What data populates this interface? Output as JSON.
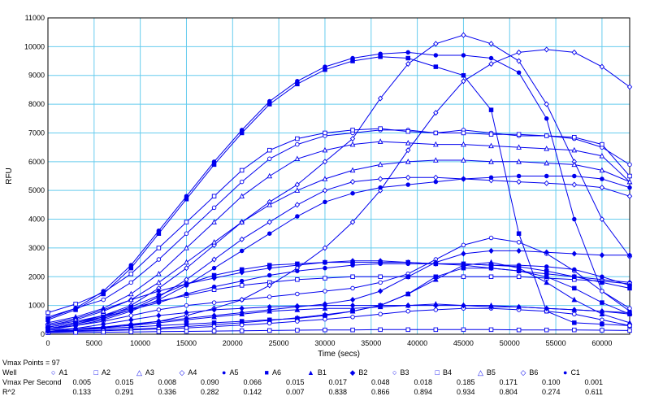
{
  "chart_data": {
    "type": "line",
    "title": "",
    "xlabel": "Time (secs)",
    "ylabel": "RFU",
    "xlim": [
      0,
      63000
    ],
    "ylim": [
      0,
      11000
    ],
    "xticks": [
      0,
      5000,
      10000,
      15000,
      20000,
      25000,
      30000,
      35000,
      40000,
      45000,
      50000,
      55000,
      60000
    ],
    "yticks": [
      0,
      1000,
      2000,
      3000,
      4000,
      5000,
      6000,
      7000,
      8000,
      9000,
      10000,
      11000
    ],
    "grid": true,
    "line_color": "#0000ee",
    "grid_color": "#66ccee",
    "x": [
      0,
      3000,
      6000,
      9000,
      12000,
      15000,
      18000,
      21000,
      24000,
      27000,
      30000,
      33000,
      36000,
      39000,
      42000,
      45000,
      48000,
      51000,
      54000,
      57000,
      60000,
      63000
    ],
    "series": [
      {
        "marker": "circle-open",
        "values": [
          600,
          900,
          1200,
          1800,
          2600,
          3500,
          4400,
          5300,
          6100,
          6600,
          6900,
          7000,
          7100,
          7100,
          7000,
          7100,
          7000,
          6900,
          6900,
          6800,
          6500,
          5900
        ]
      },
      {
        "marker": "square-open",
        "values": [
          750,
          1050,
          1450,
          2100,
          3000,
          3900,
          4800,
          5700,
          6400,
          6800,
          7000,
          7100,
          7150,
          7050,
          7000,
          7000,
          6950,
          6950,
          6900,
          6850,
          6600,
          5500
        ]
      },
      {
        "marker": "triangle-open",
        "values": [
          400,
          600,
          900,
          1400,
          2100,
          3000,
          3900,
          4800,
          5500,
          6100,
          6400,
          6600,
          6700,
          6650,
          6600,
          6600,
          6550,
          6500,
          6450,
          6400,
          6200,
          5300
        ]
      },
      {
        "marker": "diamond-open",
        "values": [
          250,
          400,
          650,
          1000,
          1600,
          2300,
          3100,
          3900,
          4600,
          5200,
          6000,
          6800,
          8200,
          9400,
          10100,
          10400,
          10100,
          9500,
          8000,
          6000,
          4000,
          2700
        ]
      },
      {
        "marker": "circle-filled",
        "values": [
          550,
          900,
          1500,
          2400,
          3600,
          4800,
          6000,
          7100,
          8100,
          8800,
          9300,
          9600,
          9750,
          9800,
          9700,
          9700,
          9600,
          9100,
          7500,
          4000,
          1500,
          800
        ]
      },
      {
        "marker": "square-filled",
        "values": [
          500,
          850,
          1400,
          2300,
          3500,
          4700,
          5900,
          7000,
          8000,
          8700,
          9200,
          9500,
          9650,
          9600,
          9300,
          9000,
          7800,
          3500,
          800,
          400,
          350,
          300
        ]
      },
      {
        "marker": "triangle-filled",
        "values": [
          150,
          200,
          250,
          300,
          400,
          500,
          600,
          700,
          800,
          850,
          900,
          900,
          950,
          1000,
          1050,
          1000,
          1000,
          950,
          900,
          850,
          800,
          750
        ]
      },
      {
        "marker": "diamond-filled",
        "values": [
          350,
          550,
          850,
          1200,
          1500,
          1750,
          1950,
          2150,
          2300,
          2400,
          2500,
          2550,
          2550,
          2500,
          2450,
          2400,
          2300,
          2200,
          2100,
          2000,
          1900,
          1800
        ]
      },
      {
        "marker": "circle-open",
        "values": [
          200,
          300,
          450,
          650,
          850,
          1000,
          1100,
          1200,
          1300,
          1400,
          1500,
          1600,
          1800,
          2100,
          2600,
          3100,
          3350,
          3200,
          2800,
          2200,
          1500,
          900
        ]
      },
      {
        "marker": "square-open",
        "values": [
          300,
          450,
          650,
          900,
          1150,
          1350,
          1550,
          1700,
          1800,
          1900,
          1950,
          2000,
          2000,
          2000,
          2000,
          2000,
          2000,
          2000,
          1950,
          1900,
          1850,
          1750
        ]
      },
      {
        "marker": "diamond-open",
        "values": [
          100,
          150,
          220,
          320,
          450,
          650,
          900,
          1200,
          1700,
          2300,
          3000,
          3900,
          5000,
          6400,
          7700,
          8800,
          9400,
          9800,
          9900,
          9800,
          9300,
          8600
        ]
      },
      {
        "marker": "triangle-open",
        "values": [
          300,
          500,
          800,
          1200,
          1800,
          2500,
          3200,
          3900,
          4500,
          5000,
          5400,
          5700,
          5900,
          6000,
          6050,
          6050,
          6000,
          6000,
          5950,
          5900,
          5700,
          5300
        ]
      },
      {
        "marker": "diamond-open",
        "values": [
          200,
          350,
          550,
          850,
          1300,
          1900,
          2600,
          3300,
          3900,
          4500,
          5000,
          5300,
          5400,
          5450,
          5450,
          5400,
          5350,
          5300,
          5250,
          5200,
          5100,
          4800
        ]
      },
      {
        "marker": "circle-filled",
        "values": [
          150,
          300,
          500,
          800,
          1200,
          1700,
          2300,
          2900,
          3500,
          4100,
          4600,
          4900,
          5100,
          5200,
          5300,
          5400,
          5450,
          5500,
          5500,
          5500,
          5400,
          5100
        ]
      },
      {
        "marker": "square-filled",
        "values": [
          200,
          350,
          600,
          950,
          1350,
          1750,
          2050,
          2250,
          2400,
          2450,
          2500,
          2500,
          2500,
          2500,
          2450,
          2450,
          2400,
          2350,
          2200,
          2000,
          1800,
          1600
        ]
      },
      {
        "marker": "circle-filled",
        "values": [
          250,
          400,
          600,
          850,
          1100,
          1400,
          1650,
          1850,
          2050,
          2200,
          2300,
          2400,
          2450,
          2450,
          2450,
          2450,
          2400,
          2400,
          2350,
          2250,
          2000,
          1700
        ]
      },
      {
        "marker": "diamond-filled",
        "values": [
          100,
          150,
          250,
          350,
          450,
          550,
          650,
          750,
          850,
          950,
          1050,
          1200,
          1500,
          2000,
          2500,
          2800,
          2900,
          2900,
          2850,
          2800,
          2750,
          2750
        ]
      },
      {
        "marker": "square-filled",
        "values": [
          100,
          150,
          200,
          250,
          300,
          350,
          400,
          450,
          500,
          550,
          650,
          800,
          1000,
          1400,
          2000,
          2300,
          2300,
          2200,
          2000,
          1600,
          1100,
          700
        ]
      },
      {
        "marker": "triangle-filled",
        "values": [
          100,
          120,
          150,
          180,
          220,
          270,
          330,
          400,
          480,
          570,
          680,
          800,
          1000,
          1400,
          1900,
          2400,
          2500,
          2300,
          1800,
          1200,
          700,
          400
        ]
      },
      {
        "marker": "circle-open",
        "values": [
          80,
          100,
          120,
          150,
          180,
          220,
          270,
          320,
          380,
          450,
          520,
          600,
          700,
          800,
          850,
          900,
          900,
          850,
          800,
          700,
          500,
          300
        ]
      },
      {
        "marker": "square-open",
        "values": [
          50,
          60,
          70,
          80,
          90,
          100,
          110,
          120,
          130,
          140,
          150,
          150,
          160,
          160,
          160,
          160,
          160,
          150,
          150,
          150,
          140,
          130
        ]
      },
      {
        "marker": "diamond-filled",
        "values": [
          100,
          200,
          350,
          500,
          650,
          750,
          850,
          900,
          950,
          980,
          1000,
          1000,
          1000,
          1000,
          1000,
          1000,
          950,
          950,
          900,
          850,
          800,
          700
        ]
      }
    ]
  },
  "table": {
    "vmax_points_label": "Vmax Points = 97",
    "row_labels": {
      "well": "Well",
      "vmax": "Vmax Per Second",
      "r2": "R^2"
    },
    "wells": [
      {
        "name": "A1",
        "marker": "○",
        "vmax": "0.005",
        "r2": "0.133"
      },
      {
        "name": "A2",
        "marker": "□",
        "vmax": "0.015",
        "r2": "0.291"
      },
      {
        "name": "A3",
        "marker": "△",
        "vmax": "0.008",
        "r2": "0.336"
      },
      {
        "name": "A4",
        "marker": "◇",
        "vmax": "0.090",
        "r2": "0.282"
      },
      {
        "name": "A5",
        "marker": "●",
        "vmax": "0.066",
        "r2": "0.142"
      },
      {
        "name": "A6",
        "marker": "■",
        "vmax": "0.015",
        "r2": "0.007"
      },
      {
        "name": "B1",
        "marker": "▲",
        "vmax": "0.017",
        "r2": "0.838"
      },
      {
        "name": "B2",
        "marker": "◆",
        "vmax": "0.048",
        "r2": "0.866"
      },
      {
        "name": "B3",
        "marker": "○",
        "vmax": "0.018",
        "r2": "0.894"
      },
      {
        "name": "B4",
        "marker": "□",
        "vmax": "0.185",
        "r2": "0.934"
      },
      {
        "name": "B5",
        "marker": "△",
        "vmax": "0.171",
        "r2": "0.804"
      },
      {
        "name": "B6",
        "marker": "◇",
        "vmax": "0.100",
        "r2": "0.274"
      },
      {
        "name": "C1",
        "marker": "●",
        "vmax": "0.001",
        "r2": "0.611"
      }
    ]
  }
}
